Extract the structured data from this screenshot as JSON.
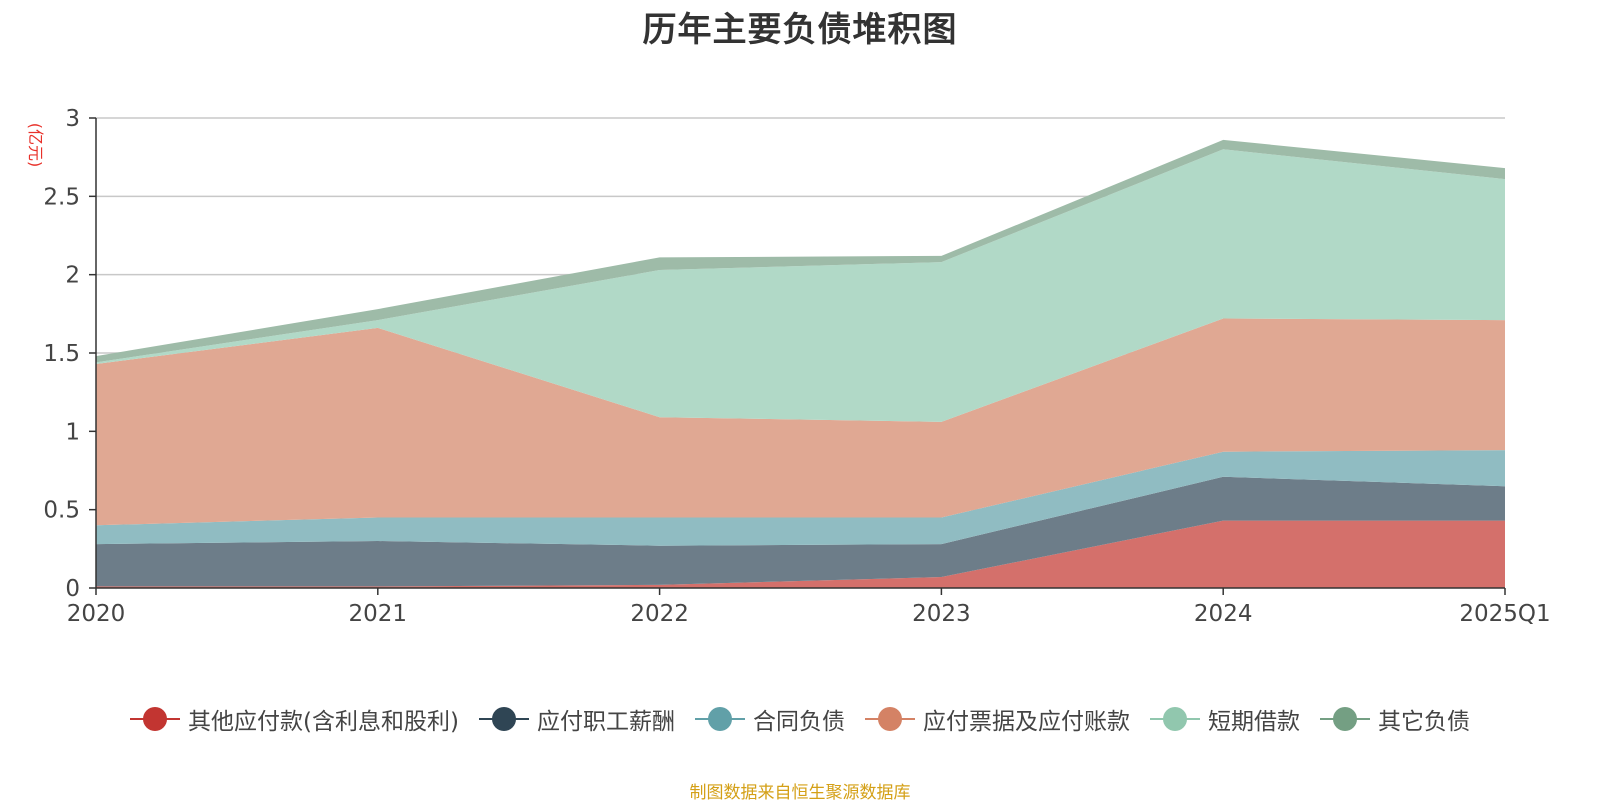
{
  "chart_data": {
    "type": "area",
    "stacked": true,
    "title": "历年主要负债堆积图",
    "unit_label": "(亿元)",
    "categories": [
      "2020",
      "2021",
      "2022",
      "2023",
      "2024",
      "2025Q1"
    ],
    "ylim": [
      0,
      3
    ],
    "yticks": [
      "0",
      "0.5",
      "1",
      "1.5",
      "2",
      "2.5",
      "3"
    ],
    "grid": true,
    "legend_position": "bottom",
    "series": [
      {
        "name": "其他应付款(含利息和股利)",
        "color": "#c23531",
        "area_color": "#d4706b",
        "values": [
          0.01,
          0.01,
          0.02,
          0.07,
          0.43,
          0.43
        ]
      },
      {
        "name": "应付职工薪酬",
        "color": "#2f4554",
        "area_color": "#6d7d89",
        "values": [
          0.27,
          0.29,
          0.25,
          0.21,
          0.28,
          0.22
        ]
      },
      {
        "name": "合同负债",
        "color": "#61a0a8",
        "area_color": "#90bcc2",
        "values": [
          0.12,
          0.15,
          0.18,
          0.17,
          0.16,
          0.23
        ]
      },
      {
        "name": "应付票据及应付账款",
        "color": "#d48265",
        "area_color": "#e0a893",
        "values": [
          1.03,
          1.21,
          0.64,
          0.61,
          0.85,
          0.83
        ]
      },
      {
        "name": "短期借款",
        "color": "#91c7ae",
        "area_color": "#b1d9c7",
        "values": [
          0.01,
          0.05,
          0.94,
          1.02,
          1.08,
          0.9
        ]
      },
      {
        "name": "其它负债",
        "color": "#749f83",
        "area_color": "#9ebba8",
        "values": [
          0.04,
          0.07,
          0.08,
          0.04,
          0.06,
          0.07
        ]
      }
    ]
  },
  "source_note": "制图数据来自恒生聚源数据库"
}
